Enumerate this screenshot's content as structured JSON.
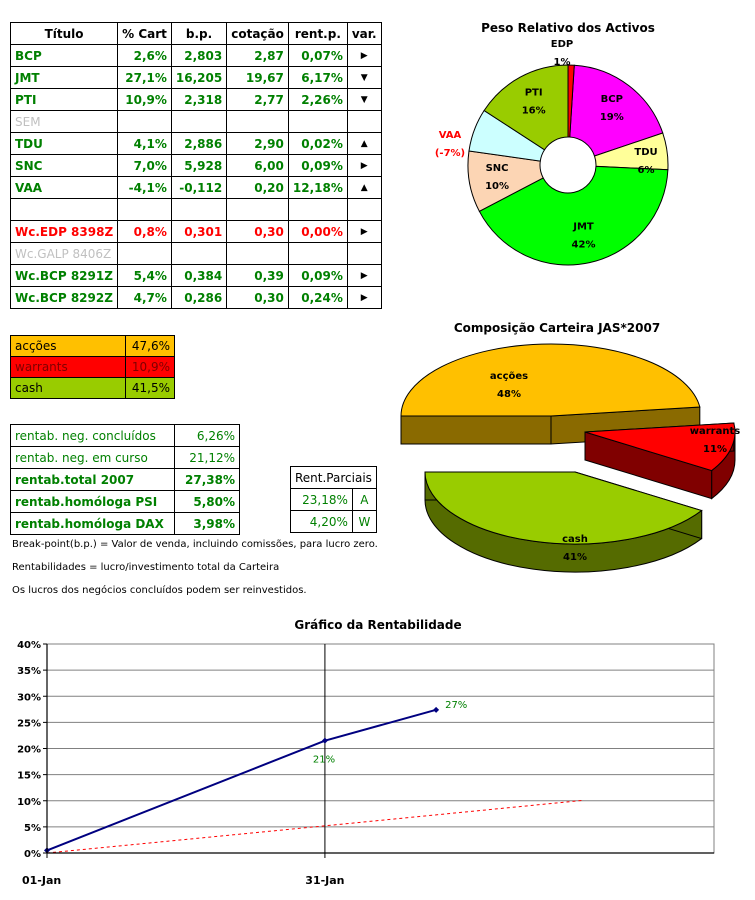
{
  "holdings": {
    "headers": [
      "Título",
      "% Cart",
      "b.p.",
      "cotação",
      "rent.p.",
      "var."
    ],
    "rows": [
      {
        "titulo": "BCP",
        "cart": "2,6%",
        "bp": "2,803",
        "cot": "2,87",
        "rent": "0,07%",
        "var": "▶",
        "style": "green"
      },
      {
        "titulo": "JMT",
        "cart": "27,1%",
        "bp": "16,205",
        "cot": "19,67",
        "rent": "6,17%",
        "var": "▼",
        "style": "green"
      },
      {
        "titulo": "PTI",
        "cart": "10,9%",
        "bp": "2,318",
        "cot": "2,77",
        "rent": "2,26%",
        "var": "▼",
        "style": "green"
      },
      {
        "titulo": "SEM",
        "cart": "",
        "bp": "",
        "cot": "",
        "rent": "",
        "var": "",
        "style": "gray"
      },
      {
        "titulo": "TDU",
        "cart": "4,1%",
        "bp": "2,886",
        "cot": "2,90",
        "rent": "0,02%",
        "var": "▲",
        "style": "green"
      },
      {
        "titulo": "SNC",
        "cart": "7,0%",
        "bp": "5,928",
        "cot": "6,00",
        "rent": "0,09%",
        "var": "▶",
        "style": "green"
      },
      {
        "titulo": "VAA",
        "cart": "-4,1%",
        "bp": "-0,112",
        "cot": "0,20",
        "rent": "12,18%",
        "var": "▲",
        "style": "green"
      },
      {
        "titulo": "",
        "cart": "",
        "bp": "",
        "cot": "",
        "rent": "",
        "var": "",
        "style": "blank"
      },
      {
        "titulo": "Wc.EDP 8398Z",
        "cart": "0,8%",
        "bp": "0,301",
        "cot": "0,30",
        "rent": "0,00%",
        "var": "▶",
        "style": "red"
      },
      {
        "titulo": "Wc.GALP 8406Z",
        "cart": "",
        "bp": "",
        "cot": "",
        "rent": "",
        "var": "",
        "style": "gray"
      },
      {
        "titulo": "Wc.BCP 8291Z",
        "cart": "5,4%",
        "bp": "0,384",
        "cot": "0,39",
        "rent": "0,09%",
        "var": "▶",
        "style": "green"
      },
      {
        "titulo": "Wc.BCP 8292Z",
        "cart": "4,7%",
        "bp": "0,286",
        "cot": "0,30",
        "rent": "0,24%",
        "var": "▶",
        "style": "green"
      }
    ]
  },
  "allocation": [
    {
      "label": "acções",
      "value": "47,6%",
      "color": "#ffc000"
    },
    {
      "label": "warrants",
      "value": "10,9%",
      "color": "#ff0000"
    },
    {
      "label": "cash",
      "value": "41,5%",
      "color": "#99cc00"
    }
  ],
  "rentab": [
    {
      "label": "rentab. neg. concluídos",
      "value": "6,26%",
      "bold": false
    },
    {
      "label": "rentab. neg. em curso",
      "value": "21,12%",
      "bold": false
    },
    {
      "label": "rentab.total 2007",
      "value": "27,38%",
      "bold": true
    },
    {
      "label": "rentab.homóloga PSI",
      "value": "5,80%",
      "bold": true
    },
    {
      "label": "rentab.homóloga DAX",
      "value": "3,98%",
      "bold": true
    }
  ],
  "parciais": {
    "header": "Rent.Parciais",
    "rows": [
      {
        "value": "23,18%",
        "code": "A"
      },
      {
        "value": "4,20%",
        "code": "W"
      }
    ]
  },
  "notes": [
    "Break-point(b.p.) = Valor de venda, incluindo comissões, para lucro zero.",
    "Rentabilidades = lucro/investimento total da Carteira",
    "Os lucros dos negócios concluídos podem ser reinvestidos."
  ],
  "chart_data": [
    {
      "type": "pie",
      "title": "Peso Relativo dos Activos",
      "style": "doughnut",
      "slices": [
        {
          "label": "BCP",
          "value": 19,
          "display": "19%",
          "color": "#ff00ff"
        },
        {
          "label": "TDU",
          "value": 6,
          "display": "6%",
          "color": "#ffff99"
        },
        {
          "label": "JMT",
          "value": 42,
          "display": "42%",
          "color": "#00ff00"
        },
        {
          "label": "SNC",
          "value": 10,
          "display": "10%",
          "color": "#fcd5b4"
        },
        {
          "label": "VAA",
          "value": 7,
          "display": "(-7%)",
          "color": "#ccffff"
        },
        {
          "label": "PTI",
          "value": 16,
          "display": "16%",
          "color": "#99cc00"
        },
        {
          "label": "EDP",
          "value": 1,
          "display": "1%",
          "color": "#ff0000"
        }
      ]
    },
    {
      "type": "pie",
      "title": "Composição Carteira JAS*2007",
      "style": "3d-exploded",
      "slices": [
        {
          "label": "acções",
          "value": 48,
          "display": "48%",
          "color": "#ffc000"
        },
        {
          "label": "warrants",
          "value": 11,
          "display": "11%",
          "color": "#ff0000"
        },
        {
          "label": "cash",
          "value": 41,
          "display": "41%",
          "color": "#99cc00"
        }
      ]
    },
    {
      "type": "line",
      "title": "Gráfico da Rentabilidade",
      "x_ticks": [
        "01-Jan",
        "31-Jan"
      ],
      "ylim": [
        0,
        40
      ],
      "y_ticks": [
        "0%",
        "5%",
        "10%",
        "15%",
        "20%",
        "25%",
        "30%",
        "35%",
        "40%"
      ],
      "grid": true,
      "series": [
        {
          "points": [
            {
              "x": "01-Jan",
              "y": 0.5
            },
            {
              "x": "31-Jan",
              "y": 21.5
            },
            {
              "x": "12-Feb",
              "y": 27.4
            }
          ],
          "labels": [
            "21%",
            "27%"
          ],
          "color": "#000080",
          "style": "solid"
        },
        {
          "points": [
            {
              "x": "01-Jan",
              "y": 0
            },
            {
              "x": "31-Jan",
              "y": 5.2
            },
            {
              "x": "28-Feb",
              "y": 10.1
            }
          ],
          "color": "#ff0000",
          "style": "dashed"
        }
      ]
    }
  ]
}
